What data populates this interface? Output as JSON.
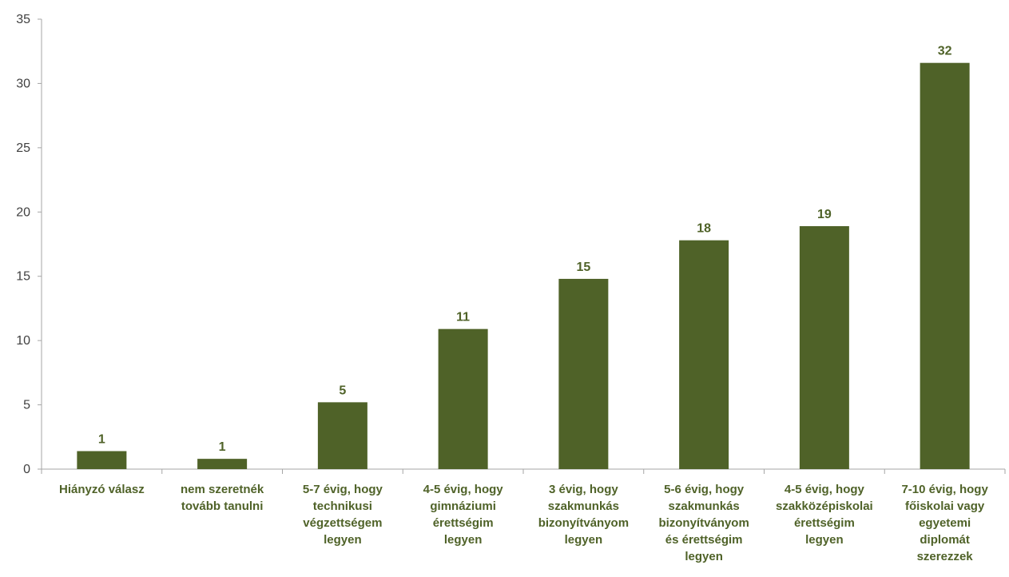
{
  "chart_data": {
    "type": "bar",
    "title": "",
    "xlabel": "",
    "ylabel": "",
    "ylim": [
      0,
      35
    ],
    "yticks": [
      0,
      5,
      10,
      15,
      20,
      25,
      30,
      35
    ],
    "grid": false,
    "legend": "none",
    "bar_color": "#4f6228",
    "label_color": "#4f6228",
    "categories": [
      [
        "Hiányzó válasz"
      ],
      [
        "nem szeretnék",
        "tovább tanulni"
      ],
      [
        "5-7 évig, hogy",
        "technikusi",
        "végzettségem",
        "legyen"
      ],
      [
        "4-5 évig, hogy",
        "gimnáziumi",
        "érettségim",
        "legyen"
      ],
      [
        "3 évig, hogy",
        "szakmunkás",
        "bizonyítványom",
        "legyen"
      ],
      [
        "5-6 évig, hogy",
        "szakmunkás",
        "bizonyítványom",
        "és érettségim",
        "legyen"
      ],
      [
        "4-5 évig, hogy",
        "szakközépiskolai",
        "érettségim",
        "legyen"
      ],
      [
        "7-10 évig, hogy",
        "főiskolai vagy",
        "egyetemi",
        "diplomát",
        "szerezzek"
      ]
    ],
    "values": [
      1.4,
      0.8,
      5.2,
      10.9,
      14.8,
      17.8,
      18.9,
      31.6
    ],
    "data_labels": [
      "1",
      "1",
      "5",
      "11",
      "15",
      "18",
      "19",
      "32"
    ]
  }
}
